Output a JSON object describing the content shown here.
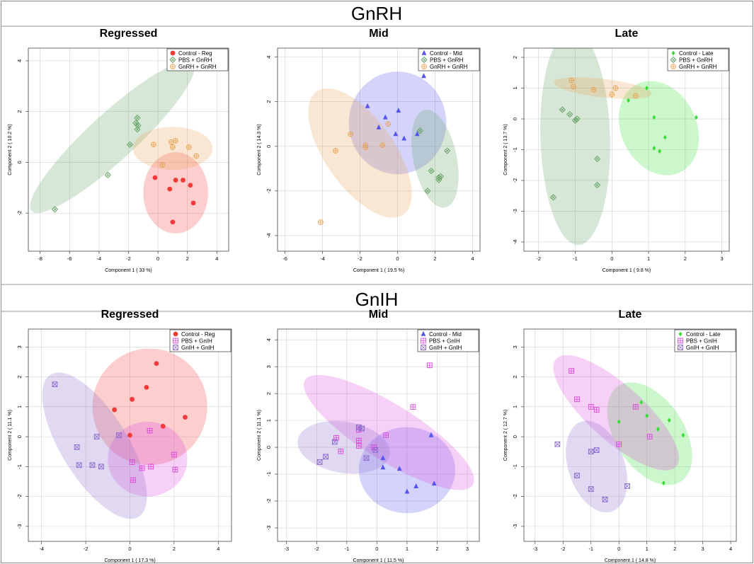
{
  "sections": [
    {
      "title": "GnRH"
    },
    {
      "title": "GnIH"
    }
  ],
  "chart_data": [
    {
      "type": "scatter",
      "section": "GnRH",
      "title": "Regressed",
      "xlabel": "Component 1 ( 33 %)",
      "ylabel": "Component 2 ( 10.2 %)",
      "xlim": [
        -8.8,
        4.8
      ],
      "ylim": [
        -3.5,
        4.5
      ],
      "xticks": [
        -8,
        -6,
        -4,
        -2,
        0,
        2,
        4
      ],
      "yticks": [
        -2,
        0,
        2,
        4
      ],
      "legend": [
        "Control - Reg",
        "PBS + GnRH",
        "GnRH + GnRH"
      ],
      "series": [
        {
          "name": "Control - Reg",
          "color": "#f23a3a",
          "marker": "circle",
          "ellipse": {
            "cx": 1.2,
            "cy": -1.2,
            "rx": 2.2,
            "ry": 1.6,
            "angle": 0
          },
          "points": [
            [
              -0.2,
              -0.6
            ],
            [
              0.8,
              -1.05
            ],
            [
              1.2,
              -0.7
            ],
            [
              1.7,
              -0.7
            ],
            [
              2.2,
              -0.9
            ],
            [
              2.4,
              -1.6
            ],
            [
              1.0,
              -2.35
            ]
          ]
        },
        {
          "name": "PBS + GnRH",
          "color": "#5fa05f",
          "marker": "diamond-x",
          "ellipse": {
            "cx": -3.1,
            "cy": 1.0,
            "rx": 6.2,
            "ry": 1.0,
            "angle": 28
          },
          "points": [
            [
              -7.0,
              -1.85
            ],
            [
              -3.4,
              -0.5
            ],
            [
              -1.9,
              0.7
            ],
            [
              -1.4,
              1.3
            ],
            [
              -1.35,
              1.45
            ],
            [
              -1.4,
              1.75
            ],
            [
              -1.5,
              1.55
            ]
          ]
        },
        {
          "name": "GnRH + GnRH",
          "color": "#e8a050",
          "marker": "circle-plus",
          "ellipse": {
            "cx": 1.0,
            "cy": 0.55,
            "rx": 2.7,
            "ry": 0.85,
            "angle": 0
          },
          "points": [
            [
              -0.3,
              0.7
            ],
            [
              0.3,
              -0.1
            ],
            [
              0.9,
              0.8
            ],
            [
              1.0,
              0.6
            ],
            [
              1.2,
              0.85
            ],
            [
              2.1,
              0.6
            ],
            [
              2.6,
              0.25
            ]
          ]
        }
      ]
    },
    {
      "type": "scatter",
      "section": "GnRH",
      "title": "Mid",
      "xlabel": "Component 1 ( 19.5 %)",
      "ylabel": "Component 2 ( 14.3 %)",
      "xlim": [
        -6.4,
        4.4
      ],
      "ylim": [
        -4.7,
        4.4
      ],
      "xticks": [
        -6,
        -4,
        -2,
        0,
        2,
        4
      ],
      "yticks": [
        -4,
        -2,
        0,
        2,
        4
      ],
      "legend": [
        "Control - Mid",
        "PBS + GnRH",
        "GnRH + GnRH"
      ],
      "series": [
        {
          "name": "Control - Mid",
          "color": "#5555ee",
          "marker": "triangle",
          "ellipse": {
            "cx": 0.0,
            "cy": 1.05,
            "rx": 2.6,
            "ry": 2.3,
            "angle": 0
          },
          "points": [
            [
              -1.6,
              1.8
            ],
            [
              -1.0,
              0.85
            ],
            [
              -0.1,
              0.55
            ],
            [
              0.05,
              1.6
            ],
            [
              1.4,
              3.15
            ],
            [
              1.05,
              0.55
            ],
            [
              0.35,
              0.35
            ],
            [
              -0.65,
              1.3
            ]
          ]
        },
        {
          "name": "PBS + GnRH",
          "color": "#5fa05f",
          "marker": "diamond-x",
          "ellipse": {
            "cx": 2.0,
            "cy": -0.55,
            "rx": 1.15,
            "ry": 2.25,
            "angle": 10
          },
          "points": [
            [
              1.2,
              0.7
            ],
            [
              1.8,
              -1.1
            ],
            [
              2.2,
              -1.4
            ],
            [
              2.3,
              -1.35
            ],
            [
              2.65,
              -0.2
            ],
            [
              1.6,
              -2.0
            ],
            [
              2.2,
              -1.5
            ]
          ]
        },
        {
          "name": "GnRH + GnRH",
          "color": "#e8a050",
          "marker": "circle-plus",
          "ellipse": {
            "cx": -2.0,
            "cy": -0.3,
            "rx": 3.6,
            "ry": 1.7,
            "angle": -50
          },
          "points": [
            [
              -4.1,
              -3.4
            ],
            [
              -3.3,
              -0.2
            ],
            [
              -2.5,
              0.55
            ],
            [
              -1.7,
              0.05
            ],
            [
              -1.7,
              -0.05
            ],
            [
              -0.8,
              0.05
            ],
            [
              -0.5,
              1.0
            ]
          ]
        }
      ]
    },
    {
      "type": "scatter",
      "section": "GnRH",
      "title": "Late",
      "xlabel": "Component 1 ( 9.8 %)",
      "ylabel": "Component 2 ( 13.7 %)",
      "xlim": [
        -2.4,
        3.2
      ],
      "ylim": [
        -4.3,
        2.3
      ],
      "xticks": [
        -2,
        -1,
        0,
        1,
        2,
        3
      ],
      "yticks": [
        -4,
        -3,
        -2,
        -1,
        0,
        1,
        2
      ],
      "legend": [
        "Control - Late",
        "PBS + GnRH",
        "GnRH + GnRH"
      ],
      "series": [
        {
          "name": "Control - Late",
          "color": "#33dd33",
          "marker": "diamond",
          "ellipse": {
            "cx": 1.28,
            "cy": -0.3,
            "rx": 1.55,
            "ry": 1.05,
            "angle": -68
          },
          "points": [
            [
              0.95,
              1.0
            ],
            [
              0.45,
              0.6
            ],
            [
              1.15,
              0.05
            ],
            [
              1.45,
              -0.6
            ],
            [
              2.3,
              0.05
            ],
            [
              1.15,
              -0.95
            ],
            [
              1.3,
              -1.05
            ]
          ]
        },
        {
          "name": "PBS + GnRH",
          "color": "#5fa05f",
          "marker": "diamond-x",
          "ellipse": {
            "cx": -1.0,
            "cy": -0.6,
            "rx": 0.95,
            "ry": 3.5,
            "angle": 2
          },
          "points": [
            [
              -1.6,
              -2.55
            ],
            [
              -1.35,
              0.3
            ],
            [
              -1.15,
              0.15
            ],
            [
              -1.0,
              -0.05
            ],
            [
              -0.95,
              0.0
            ],
            [
              -0.4,
              -1.3
            ],
            [
              -0.4,
              -2.15
            ]
          ]
        },
        {
          "name": "GnRH + GnRH",
          "color": "#e8a050",
          "marker": "circle-plus",
          "ellipse": {
            "cx": -0.25,
            "cy": 1.0,
            "rx": 1.35,
            "ry": 0.3,
            "angle": -8
          },
          "points": [
            [
              -1.1,
              1.25
            ],
            [
              -1.05,
              1.05
            ],
            [
              -0.5,
              0.95
            ],
            [
              0.0,
              0.8
            ],
            [
              0.1,
              1.0
            ],
            [
              0.65,
              0.75
            ]
          ]
        }
      ]
    },
    {
      "type": "scatter",
      "section": "GnIH",
      "title": "Regressed",
      "xlabel": "Component 1 ( 17.3 %)",
      "ylabel": "Component 2 ( 11.1 %)",
      "xlim": [
        -4.6,
        4.6
      ],
      "ylim": [
        -3.5,
        3.6
      ],
      "xticks": [
        -4,
        -2,
        0,
        2,
        4
      ],
      "yticks": [
        -3,
        -2,
        -1,
        0,
        1,
        2,
        3
      ],
      "legend": [
        "Control - Reg",
        "PBS + GnIH",
        "GnIH + GnIH"
      ],
      "series": [
        {
          "name": "Control - Reg",
          "color": "#f23a3a",
          "marker": "circle",
          "ellipse": {
            "cx": 0.9,
            "cy": 1.0,
            "rx": 2.6,
            "ry": 1.95,
            "angle": 0
          },
          "points": [
            [
              1.2,
              2.45
            ],
            [
              0.75,
              1.65
            ],
            [
              0.1,
              1.25
            ],
            [
              -0.7,
              0.9
            ],
            [
              1.5,
              0.35
            ],
            [
              2.5,
              0.65
            ],
            [
              0.0,
              0.05
            ]
          ]
        },
        {
          "name": "PBS + GnIH",
          "color": "#dd44dd",
          "marker": "square-plus",
          "ellipse": {
            "cx": 0.8,
            "cy": -0.75,
            "rx": 1.8,
            "ry": 1.25,
            "angle": 0
          },
          "points": [
            [
              0.9,
              0.2
            ],
            [
              0.55,
              -1.05
            ],
            [
              0.95,
              -1.0
            ],
            [
              0.15,
              -1.45
            ],
            [
              2.0,
              -0.6
            ],
            [
              2.05,
              -1.1
            ],
            [
              0.1,
              -0.85
            ]
          ]
        },
        {
          "name": "GnIH + GnIH",
          "color": "#8866cc",
          "marker": "square-x",
          "ellipse": {
            "cx": -1.6,
            "cy": -0.3,
            "rx": 3.1,
            "ry": 1.3,
            "angle": -50
          },
          "points": [
            [
              -3.4,
              1.75
            ],
            [
              -2.4,
              -0.35
            ],
            [
              -2.3,
              -0.95
            ],
            [
              -1.7,
              -0.95
            ],
            [
              -1.3,
              -1.0
            ],
            [
              -1.5,
              0.0
            ],
            [
              -0.5,
              0.05
            ]
          ]
        }
      ]
    },
    {
      "type": "scatter",
      "section": "GnIH",
      "title": "Mid",
      "xlabel": "Component 1 ( 11.5 %)",
      "ylabel": "Component 2 ( 11.1 %)",
      "xlim": [
        -3.3,
        3.4
      ],
      "ylim": [
        -3.5,
        4.4
      ],
      "xticks": [
        -3,
        -2,
        -1,
        0,
        1,
        2,
        3
      ],
      "yticks": [
        -3,
        -2,
        -1,
        0,
        1,
        2,
        3,
        4
      ],
      "legend": [
        "Control - Mid",
        "PBS + GnIH",
        "GnIH + GnIH"
      ],
      "series": [
        {
          "name": "Control - Mid",
          "color": "#5555ee",
          "marker": "triangle",
          "ellipse": {
            "cx": 1.0,
            "cy": -0.85,
            "rx": 1.6,
            "ry": 1.6,
            "angle": 0
          },
          "points": [
            [
              0.2,
              -0.4
            ],
            [
              0.2,
              -0.75
            ],
            [
              0.75,
              -0.8
            ],
            [
              1.0,
              -1.65
            ],
            [
              1.3,
              -1.45
            ],
            [
              1.8,
              0.45
            ],
            [
              1.9,
              -1.35
            ]
          ]
        },
        {
          "name": "PBS + GnIH",
          "color": "#dd44dd",
          "marker": "square-plus",
          "ellipse": {
            "cx": 0.4,
            "cy": 0.55,
            "rx": 3.4,
            "ry": 1.0,
            "angle": -35
          },
          "points": [
            [
              -1.35,
              0.35
            ],
            [
              -1.2,
              -0.15
            ],
            [
              -0.6,
              0.05
            ],
            [
              -0.6,
              0.25
            ],
            [
              -0.1,
              0.0
            ],
            [
              0.3,
              0.45
            ],
            [
              1.2,
              1.5
            ],
            [
              1.75,
              3.05
            ],
            [
              -0.6,
              0.65
            ]
          ]
        },
        {
          "name": "GnIH + GnIH",
          "color": "#8866cc",
          "marker": "square-x",
          "ellipse": {
            "cx": -1.1,
            "cy": 0.0,
            "rx": 1.55,
            "ry": 0.95,
            "angle": -10
          },
          "points": [
            [
              -1.9,
              -0.55
            ],
            [
              -1.7,
              -0.35
            ],
            [
              -1.4,
              0.2
            ],
            [
              -0.6,
              0.75
            ],
            [
              -0.5,
              0.7
            ],
            [
              -0.35,
              -0.4
            ],
            [
              -0.05,
              -0.1
            ]
          ]
        }
      ]
    },
    {
      "type": "scatter",
      "section": "GnIH",
      "title": "Late",
      "xlabel": "Component 1 ( 14.8 %)",
      "ylabel": "Component 2 ( 12.7 %)",
      "xlim": [
        -3.4,
        4.2
      ],
      "ylim": [
        -3.5,
        3.6
      ],
      "xticks": [
        -3,
        -2,
        -1,
        0,
        1,
        2,
        3,
        4
      ],
      "yticks": [
        -3,
        -2,
        -1,
        0,
        1,
        2,
        3
      ],
      "legend": [
        "Control - Late",
        "PBS + GnIH",
        "GnIH + GnIH"
      ],
      "series": [
        {
          "name": "Control - Late",
          "color": "#33dd33",
          "marker": "diamond",
          "ellipse": {
            "cx": 1.1,
            "cy": 0.1,
            "rx": 1.95,
            "ry": 1.2,
            "angle": -55
          },
          "points": [
            [
              0.8,
              1.15
            ],
            [
              1.0,
              0.7
            ],
            [
              0.0,
              0.5
            ],
            [
              1.4,
              0.25
            ],
            [
              1.8,
              0.55
            ],
            [
              2.3,
              0.05
            ],
            [
              1.6,
              -1.55
            ]
          ]
        },
        {
          "name": "PBS + GnIH",
          "color": "#dd44dd",
          "marker": "square-plus",
          "ellipse": {
            "cx": -0.1,
            "cy": 0.8,
            "rx": 2.8,
            "ry": 0.95,
            "angle": -40
          },
          "points": [
            [
              -1.7,
              2.2
            ],
            [
              -1.5,
              1.25
            ],
            [
              -1.0,
              1.0
            ],
            [
              -0.8,
              0.9
            ],
            [
              0.0,
              -0.25
            ],
            [
              0.6,
              1.0
            ],
            [
              1.1,
              0.0
            ]
          ]
        },
        {
          "name": "GnIH + GnIH",
          "color": "#8866cc",
          "marker": "square-x",
          "ellipse": {
            "cx": -0.8,
            "cy": -1.0,
            "rx": 1.6,
            "ry": 1.0,
            "angle": -70
          },
          "points": [
            [
              -2.2,
              -0.25
            ],
            [
              -1.5,
              -1.3
            ],
            [
              -1.0,
              -0.5
            ],
            [
              -0.8,
              -0.45
            ],
            [
              -1.0,
              -1.75
            ],
            [
              -0.5,
              -2.1
            ],
            [
              0.3,
              -1.65
            ]
          ]
        }
      ]
    }
  ]
}
